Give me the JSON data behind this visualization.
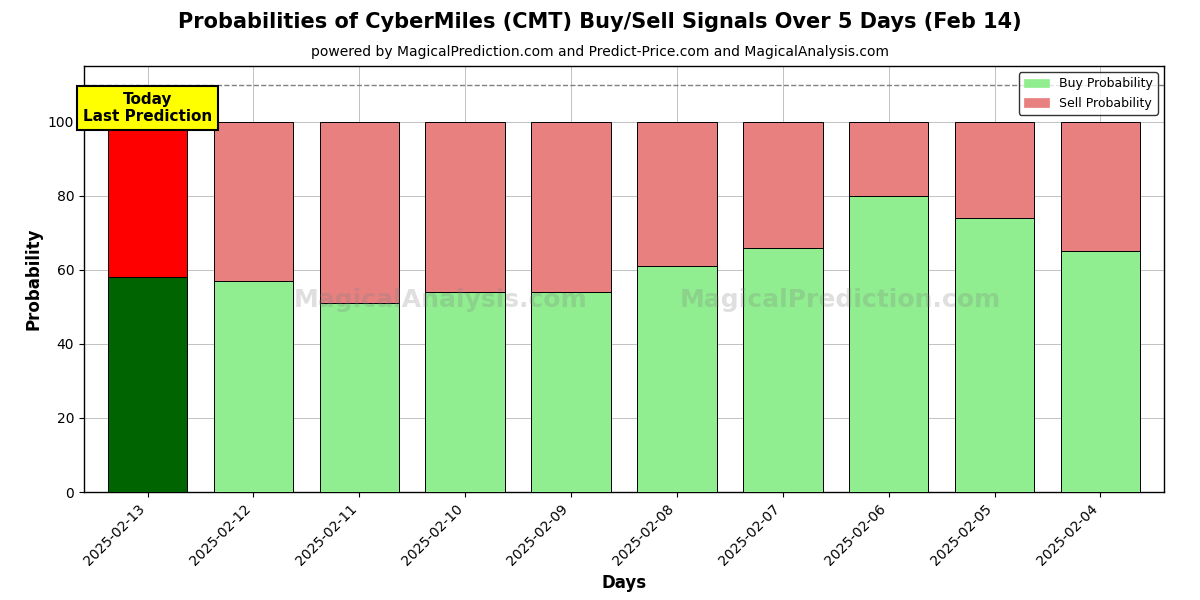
{
  "title": "Probabilities of CyberMiles (CMT) Buy/Sell Signals Over 5 Days (Feb 14)",
  "subtitle": "powered by MagicalPrediction.com and Predict-Price.com and MagicalAnalysis.com",
  "xlabel": "Days",
  "ylabel": "Probability",
  "dates": [
    "2025-02-13",
    "2025-02-12",
    "2025-02-11",
    "2025-02-10",
    "2025-02-09",
    "2025-02-08",
    "2025-02-07",
    "2025-02-06",
    "2025-02-05",
    "2025-02-04"
  ],
  "buy_values": [
    58,
    57,
    51,
    54,
    54,
    61,
    66,
    80,
    74,
    65
  ],
  "sell_values": [
    42,
    43,
    49,
    46,
    46,
    39,
    34,
    20,
    26,
    35
  ],
  "today_buy_color": "#006400",
  "today_sell_color": "#FF0000",
  "buy_color_rest": "#90EE90",
  "sell_color_rest": "#E88080",
  "bar_width": 0.75,
  "ylim": [
    0,
    115
  ],
  "yticks": [
    0,
    20,
    40,
    60,
    80,
    100
  ],
  "dashed_line_y": 110,
  "annotation_text": "Today\nLast Prediction",
  "legend_buy_label": "Buy Probability",
  "legend_sell_label": "Sell Probability",
  "figsize": [
    12,
    6
  ],
  "dpi": 100,
  "background_color": "#ffffff",
  "grid_color": "#aaaaaa",
  "title_fontsize": 15,
  "subtitle_fontsize": 10,
  "axis_label_fontsize": 12,
  "tick_fontsize": 10
}
